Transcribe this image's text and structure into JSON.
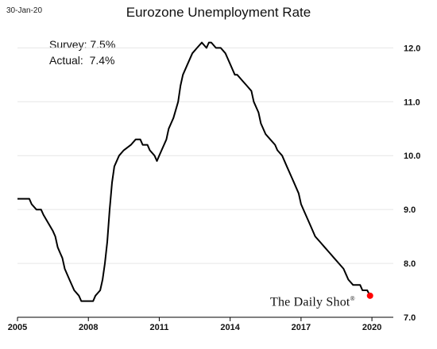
{
  "chart_data": {
    "type": "line",
    "title": "Eurozone Unemployment Rate",
    "date_stamp": "30-Jan-20",
    "annotations": [
      {
        "label": "Survey:",
        "value": "7.5%"
      },
      {
        "label": "Actual:",
        "value": "7.4%"
      }
    ],
    "watermark": "The Daily Shot",
    "watermark_mark": "®",
    "xlim": [
      2005,
      2020.4
    ],
    "ylim": [
      7.0,
      12.3
    ],
    "x_ticks": [
      2005,
      2008,
      2011,
      2014,
      2017,
      2020
    ],
    "x_tick_labels": [
      "2005",
      "2008",
      "2011",
      "2014",
      "2017",
      "2020"
    ],
    "y_ticks": [
      7.0,
      8.0,
      9.0,
      10.0,
      11.0,
      12.0
    ],
    "y_tick_labels": [
      "7.0",
      "8.0",
      "9.0",
      "10.0",
      "11.0",
      "12.0"
    ],
    "grid": "horizontal",
    "line_color": "#000000",
    "marker_color": "#ff0000",
    "latest_point": {
      "x": 2019.92,
      "y": 7.4
    },
    "series": [
      {
        "x": [
          2005.0,
          2005.5,
          2005.6,
          2005.8,
          2006.0,
          2006.1,
          2006.5,
          2006.6,
          2006.7,
          2006.8,
          2006.9,
          2007.0,
          2007.2,
          2007.4,
          2007.6,
          2007.7,
          2008.0,
          2008.2,
          2008.3,
          2008.5,
          2008.6,
          2008.7,
          2008.8,
          2008.9,
          2009.0,
          2009.1,
          2009.3,
          2009.5,
          2009.8,
          2010.0,
          2010.2,
          2010.3,
          2010.5,
          2010.6,
          2010.8,
          2010.9,
          2011.0,
          2011.1,
          2011.2,
          2011.3,
          2011.4,
          2011.5,
          2011.6,
          2011.8,
          2011.9,
          2012.0,
          2012.2,
          2012.4,
          2012.6,
          2012.8,
          2013.0,
          2013.1,
          2013.2,
          2013.4,
          2013.6,
          2013.8,
          2013.9,
          2014.0,
          2014.1,
          2014.2,
          2014.3,
          2014.5,
          2014.7,
          2014.9,
          2015.0,
          2015.2,
          2015.3,
          2015.5,
          2015.7,
          2015.9,
          2016.0,
          2016.2,
          2016.4,
          2016.6,
          2016.7,
          2016.9,
          2017.0,
          2017.2,
          2017.4,
          2017.6,
          2017.8,
          2018.0,
          2018.2,
          2018.4,
          2018.6,
          2018.8,
          2018.9,
          2019.0,
          2019.2,
          2019.4,
          2019.5,
          2019.6,
          2019.8,
          2019.92
        ],
        "values": [
          9.2,
          9.2,
          9.1,
          9.0,
          9.0,
          8.9,
          8.6,
          8.5,
          8.3,
          8.2,
          8.1,
          7.9,
          7.7,
          7.5,
          7.4,
          7.3,
          7.3,
          7.3,
          7.4,
          7.5,
          7.7,
          8.0,
          8.4,
          9.0,
          9.5,
          9.8,
          10.0,
          10.1,
          10.2,
          10.3,
          10.3,
          10.2,
          10.2,
          10.1,
          10.0,
          9.9,
          10.0,
          10.1,
          10.2,
          10.3,
          10.5,
          10.6,
          10.7,
          11.0,
          11.3,
          11.5,
          11.7,
          11.9,
          12.0,
          12.1,
          12.0,
          12.1,
          12.1,
          12.0,
          12.0,
          11.9,
          11.8,
          11.7,
          11.6,
          11.5,
          11.5,
          11.4,
          11.3,
          11.2,
          11.0,
          10.8,
          10.6,
          10.4,
          10.3,
          10.2,
          10.1,
          10.0,
          9.8,
          9.6,
          9.5,
          9.3,
          9.1,
          8.9,
          8.7,
          8.5,
          8.4,
          8.3,
          8.2,
          8.1,
          8.0,
          7.9,
          7.8,
          7.7,
          7.6,
          7.6,
          7.6,
          7.5,
          7.5,
          7.4
        ]
      }
    ]
  }
}
